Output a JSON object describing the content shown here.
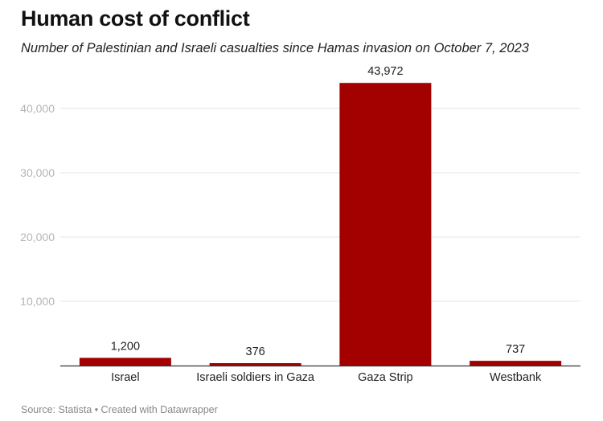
{
  "header": {
    "title": "Human cost of conflict",
    "subtitle": "Number of Palestinian and Israeli casualties since Hamas invasion on October 7, 2023"
  },
  "footer": {
    "source": "Source: Statista • Created with Datawrapper"
  },
  "colors": {
    "bar": "#a30000",
    "grid": "#e6e6e6",
    "axis": "#333333"
  },
  "chart_data": {
    "type": "bar",
    "title": "Human cost of conflict",
    "subtitle": "Number of Palestinian and Israeli casualties since Hamas invasion on October 7, 2023",
    "categories": [
      "Israel",
      "Israeli soldiers in Gaza",
      "Gaza Strip",
      "Westbank"
    ],
    "values": [
      1200,
      376,
      43972,
      737
    ],
    "value_labels": [
      "1,200",
      "376",
      "43,972",
      "737"
    ],
    "ylim": [
      0,
      45000
    ],
    "yticks": [
      10000,
      20000,
      30000,
      40000
    ],
    "ytick_labels": [
      "10,000",
      "20,000",
      "30,000",
      "40,000"
    ],
    "xlabel": "",
    "ylabel": "",
    "grid": true
  }
}
